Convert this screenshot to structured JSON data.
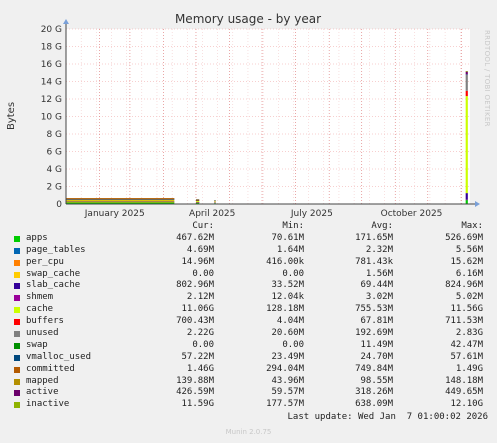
{
  "chart_data": {
    "type": "area",
    "title": "Memory usage - by year",
    "ylabel": "Bytes",
    "side_label": "RRDTOOL / TOBI OETIKER",
    "y_ticks": [
      "0",
      "2 G",
      "4 G",
      "6 G",
      "8 G",
      "10 G",
      "12 G",
      "14 G",
      "16 G",
      "18 G",
      "20 G"
    ],
    "ylim_gb": [
      0,
      20
    ],
    "x_ticks": [
      "January 2025",
      "April 2025",
      "July 2025",
      "October 2025"
    ],
    "grid": true,
    "stacked": true,
    "series_colors": {
      "apps": "#00cc00",
      "page_tables": "#0066b3",
      "per_cpu": "#ff8000",
      "swap_cache": "#ffcc00",
      "slab_cache": "#330099",
      "shmem": "#990099",
      "cache": "#ccff00",
      "buffers": "#ff0000",
      "unused": "#808080",
      "swap": "#008f00",
      "vmalloc_used": "#00487d",
      "committed": "#b35a00",
      "mapped": "#b38f00",
      "active": "#6b006b",
      "inactive": "#8fb300"
    },
    "segments": [
      {
        "name": "early-2025",
        "from_day": 0,
        "to_day": 100,
        "total_gb": 0.65
      },
      {
        "name": "april-blip",
        "from_day": 120,
        "to_day": 123,
        "total_gb": 0.55
      },
      {
        "name": "april-blip-2",
        "from_day": 137,
        "to_day": 138,
        "total_gb": 0.45
      },
      {
        "name": "jan-2026-spike",
        "from_day": 369,
        "to_day": 371,
        "total_gb": 15.2
      }
    ]
  },
  "legend": {
    "headers": {
      "cur": "Cur:",
      "min": "Min:",
      "avg": "Avg:",
      "max": "Max:"
    },
    "rows": [
      {
        "name": "apps",
        "color": "#00cc00",
        "cur": "467.62M",
        "min": "70.61M",
        "avg": "171.65M",
        "max": "526.69M"
      },
      {
        "name": "page_tables",
        "color": "#0066b3",
        "cur": "4.69M",
        "min": "1.64M",
        "avg": "2.32M",
        "max": "5.56M"
      },
      {
        "name": "per_cpu",
        "color": "#ff8000",
        "cur": "14.96M",
        "min": "416.00k",
        "avg": "781.43k",
        "max": "15.62M"
      },
      {
        "name": "swap_cache",
        "color": "#ffcc00",
        "cur": "0.00",
        "min": "0.00",
        "avg": "1.56M",
        "max": "6.16M"
      },
      {
        "name": "slab_cache",
        "color": "#330099",
        "cur": "802.96M",
        "min": "33.52M",
        "avg": "69.44M",
        "max": "824.96M"
      },
      {
        "name": "shmem",
        "color": "#990099",
        "cur": "2.12M",
        "min": "12.04k",
        "avg": "3.02M",
        "max": "5.02M"
      },
      {
        "name": "cache",
        "color": "#ccff00",
        "cur": "11.06G",
        "min": "128.18M",
        "avg": "755.53M",
        "max": "11.56G"
      },
      {
        "name": "buffers",
        "color": "#ff0000",
        "cur": "700.43M",
        "min": "4.04M",
        "avg": "67.81M",
        "max": "711.53M"
      },
      {
        "name": "unused",
        "color": "#808080",
        "cur": "2.22G",
        "min": "20.60M",
        "avg": "192.69M",
        "max": "2.83G"
      },
      {
        "name": "swap",
        "color": "#008f00",
        "cur": "0.00",
        "min": "0.00",
        "avg": "11.49M",
        "max": "42.47M"
      },
      {
        "name": "vmalloc_used",
        "color": "#00487d",
        "cur": "57.22M",
        "min": "23.49M",
        "avg": "24.70M",
        "max": "57.61M"
      },
      {
        "name": "committed",
        "color": "#b35a00",
        "cur": "1.46G",
        "min": "294.04M",
        "avg": "749.84M",
        "max": "1.49G"
      },
      {
        "name": "mapped",
        "color": "#b38f00",
        "cur": "139.88M",
        "min": "43.96M",
        "avg": "98.55M",
        "max": "148.18M"
      },
      {
        "name": "active",
        "color": "#6b006b",
        "cur": "426.59M",
        "min": "59.57M",
        "avg": "318.26M",
        "max": "449.65M"
      },
      {
        "name": "inactive",
        "color": "#8fb300",
        "cur": "11.59G",
        "min": "177.57M",
        "avg": "638.09M",
        "max": "12.10G"
      }
    ]
  },
  "last_update": "Last update: Wed Jan  7 01:00:02 2026",
  "footer": "Munin 2.0.75"
}
